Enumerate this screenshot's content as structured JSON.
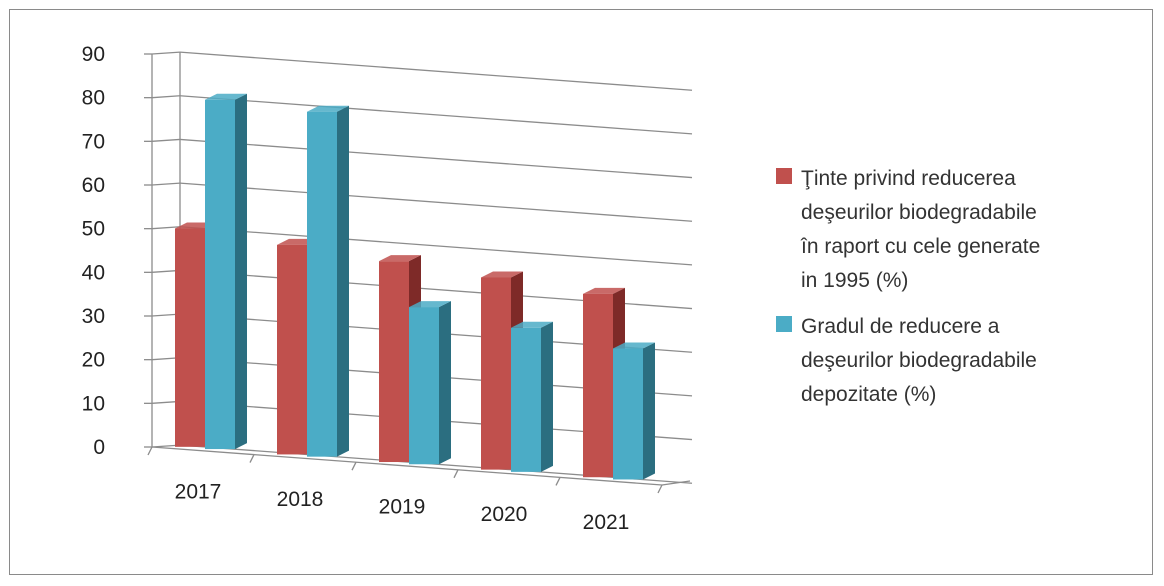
{
  "chart_data": {
    "type": "bar",
    "categories": [
      "2017",
      "2018",
      "2019",
      "2020",
      "2021"
    ],
    "series": [
      {
        "name": "Ţinte privind reducerea deşeurilor biodegradabile în raport cu cele generate in 1995 (%)",
        "legend_lines": [
          "Ţinte privind reducerea",
          "deşeurilor biodegradabile",
          "în raport cu cele  generate",
          "in 1995 (%)"
        ],
        "values": [
          50,
          48,
          46,
          44,
          42
        ],
        "color": "#c0504d",
        "side_color": "#7e2a28"
      },
      {
        "name": "Gradul de reducere a deşeurilor biodegradabile depozitate (%)",
        "legend_lines": [
          "Gradul de reducere a",
          "deşeurilor  biodegradabile",
          "depozitate (%)"
        ],
        "values": [
          80,
          79,
          36,
          33,
          30
        ],
        "color": "#4bacc6",
        "side_color": "#2b6e80"
      }
    ],
    "yticks": [
      0,
      10,
      20,
      30,
      40,
      50,
      60,
      70,
      80,
      90
    ],
    "ylim": [
      0,
      90
    ],
    "grid": true,
    "legend_position": "right"
  }
}
